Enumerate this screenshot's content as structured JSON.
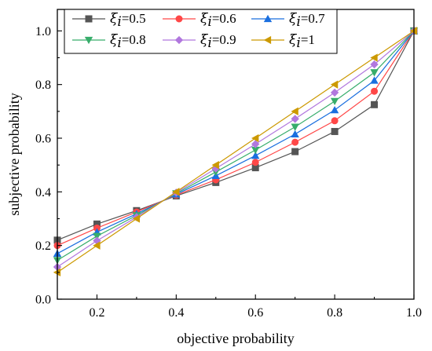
{
  "chart_data": {
    "type": "line",
    "xlabel": "objective probability",
    "ylabel": "subjective probability",
    "xlim": [
      0.1,
      1.0
    ],
    "ylim": [
      0.0,
      1.08
    ],
    "xticks": [
      0.2,
      0.4,
      0.6,
      0.8,
      1.0
    ],
    "xtick_labels": [
      "0.2",
      "0.4",
      "0.6",
      "0.8",
      "1.0"
    ],
    "yticks": [
      0.0,
      0.2,
      0.4,
      0.6,
      0.8,
      1.0
    ],
    "ytick_labels": [
      "0.0",
      "0.2",
      "0.4",
      "0.6",
      "0.8",
      "1.0"
    ],
    "legend_position": "top",
    "x": [
      0.1,
      0.2,
      0.3,
      0.4,
      0.5,
      0.6,
      0.7,
      0.8,
      0.9,
      1.0
    ],
    "series": [
      {
        "name": "ξi=0.5",
        "symbol": "ξ",
        "subscript": "i",
        "value_text": "=0.5",
        "color": "#555555",
        "marker": "square",
        "values": [
          0.22,
          0.28,
          0.33,
          0.385,
          0.435,
          0.49,
          0.55,
          0.625,
          0.725,
          1.0
        ]
      },
      {
        "name": "ξi=0.6",
        "symbol": "ξ",
        "subscript": "i",
        "value_text": "=0.6",
        "color": "#ff4747",
        "marker": "circle",
        "values": [
          0.2,
          0.265,
          0.325,
          0.388,
          0.445,
          0.51,
          0.585,
          0.665,
          0.775,
          1.0
        ]
      },
      {
        "name": "ξi=0.7",
        "symbol": "ξ",
        "subscript": "i",
        "value_text": "=0.7",
        "color": "#1a6fdf",
        "marker": "triangle-up",
        "values": [
          0.17,
          0.25,
          0.318,
          0.391,
          0.46,
          0.535,
          0.615,
          0.705,
          0.815,
          1.0
        ]
      },
      {
        "name": "ξi=0.8",
        "symbol": "ξ",
        "subscript": "i",
        "value_text": "=0.8",
        "color": "#37ad6b",
        "marker": "triangle-down",
        "values": [
          0.145,
          0.235,
          0.312,
          0.394,
          0.474,
          0.556,
          0.642,
          0.738,
          0.845,
          1.0
        ]
      },
      {
        "name": "ξi=0.9",
        "symbol": "ξ",
        "subscript": "i",
        "value_text": "=0.9",
        "color": "#b177de",
        "marker": "diamond",
        "values": [
          0.12,
          0.218,
          0.306,
          0.397,
          0.487,
          0.578,
          0.672,
          0.77,
          0.875,
          1.0
        ]
      },
      {
        "name": "ξi=1",
        "symbol": "ξ",
        "subscript": "i",
        "value_text": "=1",
        "color": "#cc9900",
        "marker": "triangle-left",
        "values": [
          0.1,
          0.2,
          0.3,
          0.4,
          0.5,
          0.6,
          0.7,
          0.8,
          0.9,
          1.0
        ]
      }
    ]
  }
}
